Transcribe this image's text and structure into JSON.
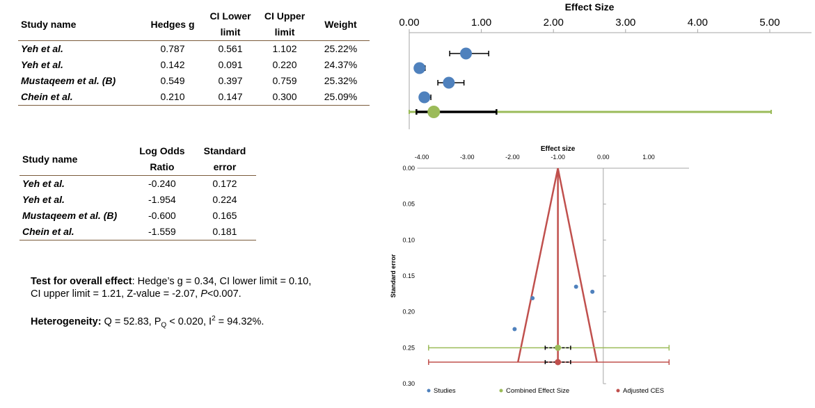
{
  "table1": {
    "headers": [
      "Study name",
      "Hedges g",
      "CI Lower limit",
      "CI Upper limit",
      "Weight"
    ],
    "rows": [
      {
        "study": "Yeh et al.",
        "g": "0.787",
        "lower": "0.561",
        "upper": "1.102",
        "weight": "25.22%"
      },
      {
        "study": "Yeh et al.",
        "g": "0.142",
        "lower": "0.091",
        "upper": "0.220",
        "weight": "24.37%"
      },
      {
        "study": "Mustaqeem et al. (B)",
        "g": "0.549",
        "lower": "0.397",
        "upper": "0.759",
        "weight": "25.32%"
      },
      {
        "study": "Chein et al.",
        "g": "0.210",
        "lower": "0.147",
        "upper": "0.300",
        "weight": "25.09%"
      }
    ]
  },
  "table2": {
    "headers": [
      "Study name",
      "Log Odds Ratio",
      "Standard error"
    ],
    "rows": [
      {
        "study": "Yeh et al.",
        "lor": "-0.240",
        "se": "0.172"
      },
      {
        "study": "Yeh et al.",
        "lor": "-1.954",
        "se": "0.224"
      },
      {
        "study": "Mustaqeem et al. (B)",
        "lor": "-0.600",
        "se": "0.165"
      },
      {
        "study": "Chein et al.",
        "lor": "-1.559",
        "se": "0.181"
      }
    ]
  },
  "overall": {
    "label": "Test for overall effect",
    "text1": ": Hedge’s g = 0.34, CI lower limit = 0.10,",
    "text2": "CI upper limit  = 1.21, Z-value = -2.07,",
    "p_symbol": "P",
    "p_text": "<0.007."
  },
  "heterogeneity": {
    "label": "Heterogeneity:",
    "q_text": " Q = 52.83, P",
    "q_sub": "Q",
    "mid_text": " < 0.020, I",
    "sup": "2",
    "end_text": " = 94.32%."
  },
  "chart_data": [
    {
      "type": "scatter",
      "title": "Effect Size",
      "xlabel": "",
      "ylabel": "",
      "xlim": [
        0,
        5
      ],
      "x_ticks": [
        "0.00",
        "1.00",
        "2.00",
        "3.00",
        "4.00",
        "5.00"
      ],
      "grid": false,
      "studies": [
        {
          "g": 0.787,
          "lower": 0.561,
          "upper": 1.102
        },
        {
          "g": 0.142,
          "lower": 0.091,
          "upper": 0.22
        },
        {
          "g": 0.549,
          "lower": 0.397,
          "upper": 0.759
        },
        {
          "g": 0.21,
          "lower": 0.147,
          "upper": 0.3
        }
      ],
      "combined": {
        "g": 0.34,
        "lower": 0.1,
        "upper": 1.21,
        "green_lower": 0.0,
        "green_upper": 5.02
      },
      "colors": {
        "study": "#4f81bd",
        "combined": "#9bbb59",
        "ci": "#000000"
      }
    },
    {
      "type": "scatter",
      "title": "Effect size",
      "xlabel": "",
      "ylabel": "Standard error",
      "xlim": [
        -4.1,
        1.9
      ],
      "ylim": [
        0.0,
        0.3
      ],
      "x_ticks": [
        "-4.00",
        "-3.00",
        "-2.00",
        "-1.00",
        "0.00",
        "1.00"
      ],
      "y_ticks": [
        "0.00",
        "0.05",
        "0.10",
        "0.15",
        "0.20",
        "0.25",
        "0.30"
      ],
      "grid": false,
      "studies": [
        {
          "x": -0.6,
          "y": 0.165
        },
        {
          "x": -0.24,
          "y": 0.172
        },
        {
          "x": -1.559,
          "y": 0.181
        },
        {
          "x": -1.954,
          "y": 0.224
        }
      ],
      "funnel": {
        "apex_x": -1.0,
        "apex_y": 0.0,
        "base_y": 0.27,
        "left_x": -1.88,
        "right_x": -0.14
      },
      "combined": {
        "x": -1.0,
        "y": 0.25,
        "ci": [
          -1.28,
          -0.72
        ],
        "range": [
          -3.85,
          1.45
        ]
      },
      "adjusted": {
        "x": -1.0,
        "y": 0.27,
        "ci": [
          -1.28,
          -0.72
        ],
        "range": [
          -3.85,
          1.45
        ]
      },
      "legend": [
        "Studies",
        "Combined Effect Size",
        "Adjusted CES"
      ],
      "legend_position": "bottom",
      "colors": {
        "studies": "#4f81bd",
        "combined": "#9bbb59",
        "adjusted": "#c0504d",
        "axis": "#a6a6a6"
      }
    }
  ]
}
